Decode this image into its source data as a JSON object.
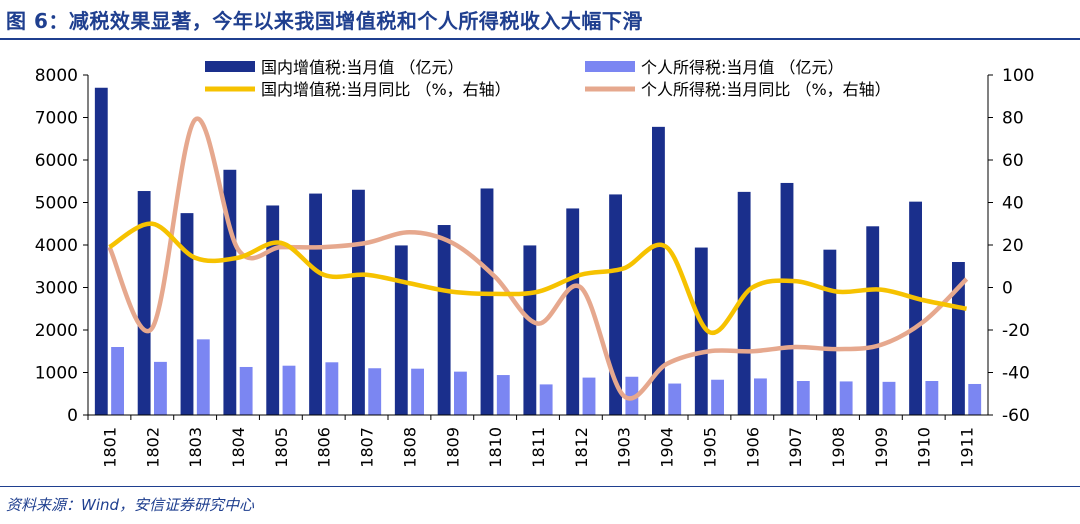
{
  "title": "图 6：减税效果显著，今年以来我国增值税和个人所得税收入大幅下滑",
  "source": "资料来源：Wind，安信证券研究中心",
  "colors": {
    "vat_bar": "#1a2f8c",
    "pit_bar": "#7b86f2",
    "vat_line": "#f6c200",
    "pit_line": "#e6a88e",
    "title": "#1f3f8f"
  },
  "chart_data": {
    "type": "bar+line",
    "categories": [
      "1801",
      "1802",
      "1803",
      "1804",
      "1805",
      "1806",
      "1807",
      "1808",
      "1809",
      "1810",
      "1811",
      "1812",
      "1903",
      "1904",
      "1905",
      "1906",
      "1907",
      "1908",
      "1909",
      "1910",
      "1911"
    ],
    "y_left": {
      "min": 0,
      "max": 8000,
      "ticks": [
        0,
        1000,
        2000,
        3000,
        4000,
        5000,
        6000,
        7000,
        8000
      ]
    },
    "y_right": {
      "min": -60,
      "max": 100,
      "ticks": [
        -60,
        -40,
        -20,
        0,
        20,
        40,
        60,
        80,
        100
      ]
    },
    "legend": [
      {
        "key": "vat_value",
        "label": "国内增值税:当月值 （亿元）",
        "kind": "bar"
      },
      {
        "key": "pit_value",
        "label": "个人所得税:当月值 （亿元）",
        "kind": "bar"
      },
      {
        "key": "vat_yoy",
        "label": "国内增值税:当月同比 （%，右轴）",
        "kind": "line"
      },
      {
        "key": "pit_yoy",
        "label": "个人所得税:当月同比 （%，右轴）",
        "kind": "line"
      }
    ],
    "series": [
      {
        "name": "国内增值税:当月值 （亿元）",
        "axis": "left",
        "type": "bar",
        "values": [
          7700,
          5270,
          4750,
          5770,
          4930,
          5210,
          5300,
          3990,
          4470,
          5330,
          3990,
          4860,
          5190,
          6780,
          3940,
          5250,
          5460,
          3890,
          4440,
          5020,
          3600
        ]
      },
      {
        "name": "个人所得税:当月值 （亿元）",
        "axis": "left",
        "type": "bar",
        "values": [
          1600,
          1250,
          1780,
          1130,
          1160,
          1240,
          1100,
          1090,
          1020,
          940,
          720,
          880,
          900,
          740,
          830,
          860,
          800,
          790,
          780,
          800,
          730
        ]
      },
      {
        "name": "国内增值税:当月同比 （%，右轴）",
        "axis": "right",
        "type": "line",
        "values": [
          19,
          30,
          14,
          14,
          21,
          6,
          6,
          2,
          -2,
          -3,
          -2,
          6,
          9,
          19,
          -21,
          0,
          3,
          -2,
          -1,
          -6,
          -10
        ]
      },
      {
        "name": "个人所得税:当月同比 （%，右轴）",
        "axis": "right",
        "type": "line",
        "values": [
          19,
          -19,
          79,
          18,
          19,
          19,
          21,
          26,
          21,
          5,
          -17,
          0,
          -51,
          -36,
          -30,
          -30,
          -28,
          -29,
          -27,
          -16,
          4
        ]
      }
    ]
  }
}
